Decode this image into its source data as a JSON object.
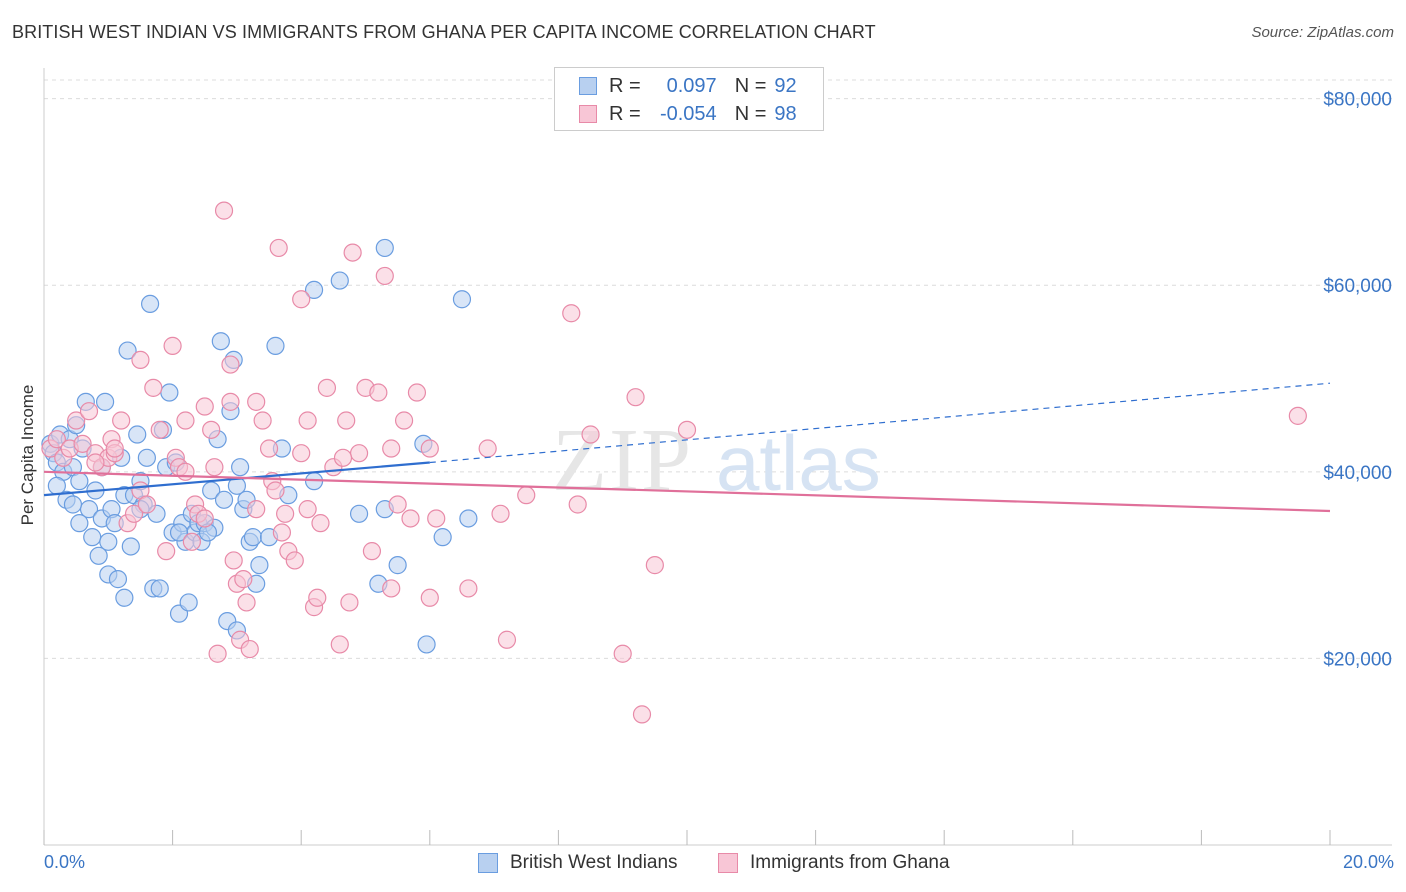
{
  "title": "BRITISH WEST INDIAN VS IMMIGRANTS FROM GHANA PER CAPITA INCOME CORRELATION CHART",
  "source": "Source: ZipAtlas.com",
  "watermark": "ZIPatlas",
  "legend": {
    "rows": [
      {
        "r_label": "R =",
        "r_value": "0.097",
        "n_label": "N =",
        "n_value": "92",
        "fill": "#b8d0f0",
        "stroke": "#6a9de0"
      },
      {
        "r_label": "R =",
        "r_value": "-0.054",
        "n_label": "N =",
        "n_value": "98",
        "fill": "#f8c6d6",
        "stroke": "#e88aa8"
      }
    ]
  },
  "chart_data": {
    "type": "scatter",
    "title": "BRITISH WEST INDIAN VS IMMIGRANTS FROM GHANA PER CAPITA INCOME CORRELATION CHART",
    "xlabel": "",
    "ylabel": "Per Capita Income",
    "xlim": [
      0,
      20
    ],
    "ylim": [
      0,
      82000
    ],
    "x_tick_labels": [
      "0.0%",
      "20.0%"
    ],
    "y_ticks": [
      20000,
      40000,
      60000,
      80000
    ],
    "y_tick_labels": [
      "$20,000",
      "$40,000",
      "$60,000",
      "$80,000"
    ],
    "grid": true,
    "legend_position": "top-center",
    "series": [
      {
        "name": "British West Indians",
        "color": "#6a9de0",
        "fill": "#b8d0f0",
        "trend": {
          "x0": 0.0,
          "y0": 37500,
          "x1": 6.0,
          "y1": 41000,
          "dash_to_x": 20.0,
          "dash_to_y": 49500,
          "color": "#2f6ecf"
        },
        "points": [
          [
            0.1,
            43000
          ],
          [
            0.15,
            42000
          ],
          [
            0.2,
            41000
          ],
          [
            0.25,
            44000
          ],
          [
            0.3,
            40000
          ],
          [
            0.35,
            37000
          ],
          [
            0.4,
            43500
          ],
          [
            0.45,
            40500
          ],
          [
            0.5,
            45000
          ],
          [
            0.55,
            39000
          ],
          [
            0.6,
            42500
          ],
          [
            0.65,
            47500
          ],
          [
            0.7,
            36000
          ],
          [
            0.75,
            33000
          ],
          [
            0.8,
            38000
          ],
          [
            0.85,
            31000
          ],
          [
            0.9,
            35000
          ],
          [
            0.95,
            47500
          ],
          [
            1.0,
            29000
          ],
          [
            1.05,
            36000
          ],
          [
            1.1,
            34500
          ],
          [
            1.15,
            28500
          ],
          [
            1.2,
            41500
          ],
          [
            1.25,
            37500
          ],
          [
            1.3,
            53000
          ],
          [
            1.35,
            32000
          ],
          [
            1.4,
            37500
          ],
          [
            1.45,
            44000
          ],
          [
            1.5,
            39000
          ],
          [
            1.55,
            36500
          ],
          [
            1.6,
            41500
          ],
          [
            1.65,
            58000
          ],
          [
            1.7,
            27500
          ],
          [
            1.75,
            35500
          ],
          [
            1.8,
            27500
          ],
          [
            1.85,
            44500
          ],
          [
            1.9,
            40500
          ],
          [
            1.95,
            48500
          ],
          [
            2.0,
            33500
          ],
          [
            2.05,
            41000
          ],
          [
            2.1,
            24800
          ],
          [
            2.15,
            34500
          ],
          [
            2.2,
            32500
          ],
          [
            2.25,
            26000
          ],
          [
            2.3,
            35500
          ],
          [
            2.35,
            33500
          ],
          [
            2.4,
            34500
          ],
          [
            2.45,
            32500
          ],
          [
            2.5,
            34500
          ],
          [
            2.6,
            38000
          ],
          [
            2.65,
            34000
          ],
          [
            2.7,
            43500
          ],
          [
            2.75,
            54000
          ],
          [
            2.8,
            37000
          ],
          [
            2.85,
            24000
          ],
          [
            2.9,
            46500
          ],
          [
            2.95,
            52000
          ],
          [
            3.0,
            23000
          ],
          [
            3.05,
            40500
          ],
          [
            3.1,
            36000
          ],
          [
            3.15,
            37000
          ],
          [
            3.2,
            32500
          ],
          [
            3.25,
            33000
          ],
          [
            3.3,
            28000
          ],
          [
            3.5,
            33000
          ],
          [
            3.6,
            53500
          ],
          [
            3.7,
            42500
          ],
          [
            3.8,
            37500
          ],
          [
            4.2,
            59500
          ],
          [
            4.6,
            60500
          ],
          [
            4.2,
            39000
          ],
          [
            5.2,
            28000
          ],
          [
            5.3,
            64000
          ],
          [
            5.5,
            30000
          ],
          [
            5.9,
            43000
          ],
          [
            5.95,
            21500
          ],
          [
            6.2,
            33000
          ],
          [
            6.5,
            58500
          ],
          [
            6.6,
            35000
          ],
          [
            0.2,
            38500
          ],
          [
            1.5,
            36000
          ],
          [
            2.55,
            33500
          ],
          [
            3.35,
            30000
          ],
          [
            0.45,
            36500
          ],
          [
            1.0,
            32500
          ],
          [
            1.25,
            26500
          ],
          [
            5.3,
            36000
          ],
          [
            3.0,
            38500
          ],
          [
            0.9,
            40500
          ],
          [
            2.1,
            33500
          ],
          [
            4.9,
            35500
          ],
          [
            0.55,
            34500
          ]
        ]
      },
      {
        "name": "Immigrants from Ghana",
        "color": "#e88aa8",
        "fill": "#f8c6d6",
        "trend": {
          "x0": 0.0,
          "y0": 40000,
          "x1": 20.0,
          "y1": 35800,
          "color": "#e0709a"
        },
        "points": [
          [
            0.1,
            42500
          ],
          [
            0.2,
            43500
          ],
          [
            0.3,
            41500
          ],
          [
            0.4,
            42500
          ],
          [
            0.5,
            45500
          ],
          [
            0.6,
            43000
          ],
          [
            0.7,
            46500
          ],
          [
            0.8,
            42000
          ],
          [
            0.9,
            40500
          ],
          [
            1.0,
            41500
          ],
          [
            1.05,
            43500
          ],
          [
            1.1,
            42000
          ],
          [
            1.2,
            45500
          ],
          [
            1.3,
            34500
          ],
          [
            1.4,
            35500
          ],
          [
            1.5,
            38000
          ],
          [
            1.6,
            36500
          ],
          [
            1.7,
            49000
          ],
          [
            1.8,
            44500
          ],
          [
            1.9,
            31500
          ],
          [
            2.0,
            53500
          ],
          [
            2.05,
            41500
          ],
          [
            2.1,
            40500
          ],
          [
            2.2,
            45500
          ],
          [
            2.3,
            32500
          ],
          [
            2.35,
            36500
          ],
          [
            2.4,
            35500
          ],
          [
            2.5,
            35000
          ],
          [
            2.6,
            44500
          ],
          [
            2.65,
            40500
          ],
          [
            2.7,
            20500
          ],
          [
            2.8,
            68000
          ],
          [
            2.9,
            47500
          ],
          [
            2.95,
            30500
          ],
          [
            3.0,
            28000
          ],
          [
            3.05,
            22000
          ],
          [
            3.1,
            28500
          ],
          [
            3.15,
            26000
          ],
          [
            3.2,
            21000
          ],
          [
            3.3,
            36000
          ],
          [
            3.4,
            45500
          ],
          [
            3.5,
            42500
          ],
          [
            3.55,
            39000
          ],
          [
            3.65,
            64000
          ],
          [
            3.7,
            33500
          ],
          [
            3.75,
            35500
          ],
          [
            3.8,
            31500
          ],
          [
            3.9,
            30500
          ],
          [
            4.0,
            58500
          ],
          [
            4.1,
            45500
          ],
          [
            4.2,
            25500
          ],
          [
            4.25,
            26500
          ],
          [
            4.3,
            34500
          ],
          [
            4.4,
            49000
          ],
          [
            4.5,
            40500
          ],
          [
            4.6,
            21500
          ],
          [
            4.7,
            45500
          ],
          [
            4.75,
            26000
          ],
          [
            4.8,
            63500
          ],
          [
            4.9,
            42000
          ],
          [
            5.0,
            49000
          ],
          [
            5.1,
            31500
          ],
          [
            5.2,
            48500
          ],
          [
            5.3,
            61000
          ],
          [
            5.4,
            27500
          ],
          [
            5.5,
            36500
          ],
          [
            5.6,
            45500
          ],
          [
            5.7,
            35000
          ],
          [
            5.8,
            48500
          ],
          [
            6.0,
            26500
          ],
          [
            6.1,
            35000
          ],
          [
            7.1,
            35500
          ],
          [
            7.2,
            22000
          ],
          [
            7.5,
            37500
          ],
          [
            8.2,
            57000
          ],
          [
            8.3,
            36500
          ],
          [
            8.5,
            44000
          ],
          [
            9.0,
            20500
          ],
          [
            9.2,
            48000
          ],
          [
            9.3,
            14000
          ],
          [
            9.5,
            30000
          ],
          [
            10.0,
            44500
          ],
          [
            19.5,
            46000
          ],
          [
            0.8,
            41000
          ],
          [
            1.5,
            52000
          ],
          [
            2.9,
            51500
          ],
          [
            3.3,
            47500
          ],
          [
            1.1,
            42500
          ],
          [
            4.0,
            42000
          ],
          [
            3.6,
            38000
          ],
          [
            2.5,
            47000
          ],
          [
            5.4,
            42500
          ],
          [
            6.0,
            42500
          ],
          [
            6.6,
            27500
          ],
          [
            6.9,
            42500
          ],
          [
            4.65,
            41500
          ],
          [
            4.1,
            36000
          ],
          [
            2.2,
            40000
          ]
        ]
      }
    ]
  },
  "bottom_legend": [
    {
      "label": "British West Indians",
      "fill": "#b8d0f0",
      "stroke": "#6a9de0"
    },
    {
      "label": "Immigrants from Ghana",
      "fill": "#f8c6d6",
      "stroke": "#e88aa8"
    }
  ]
}
